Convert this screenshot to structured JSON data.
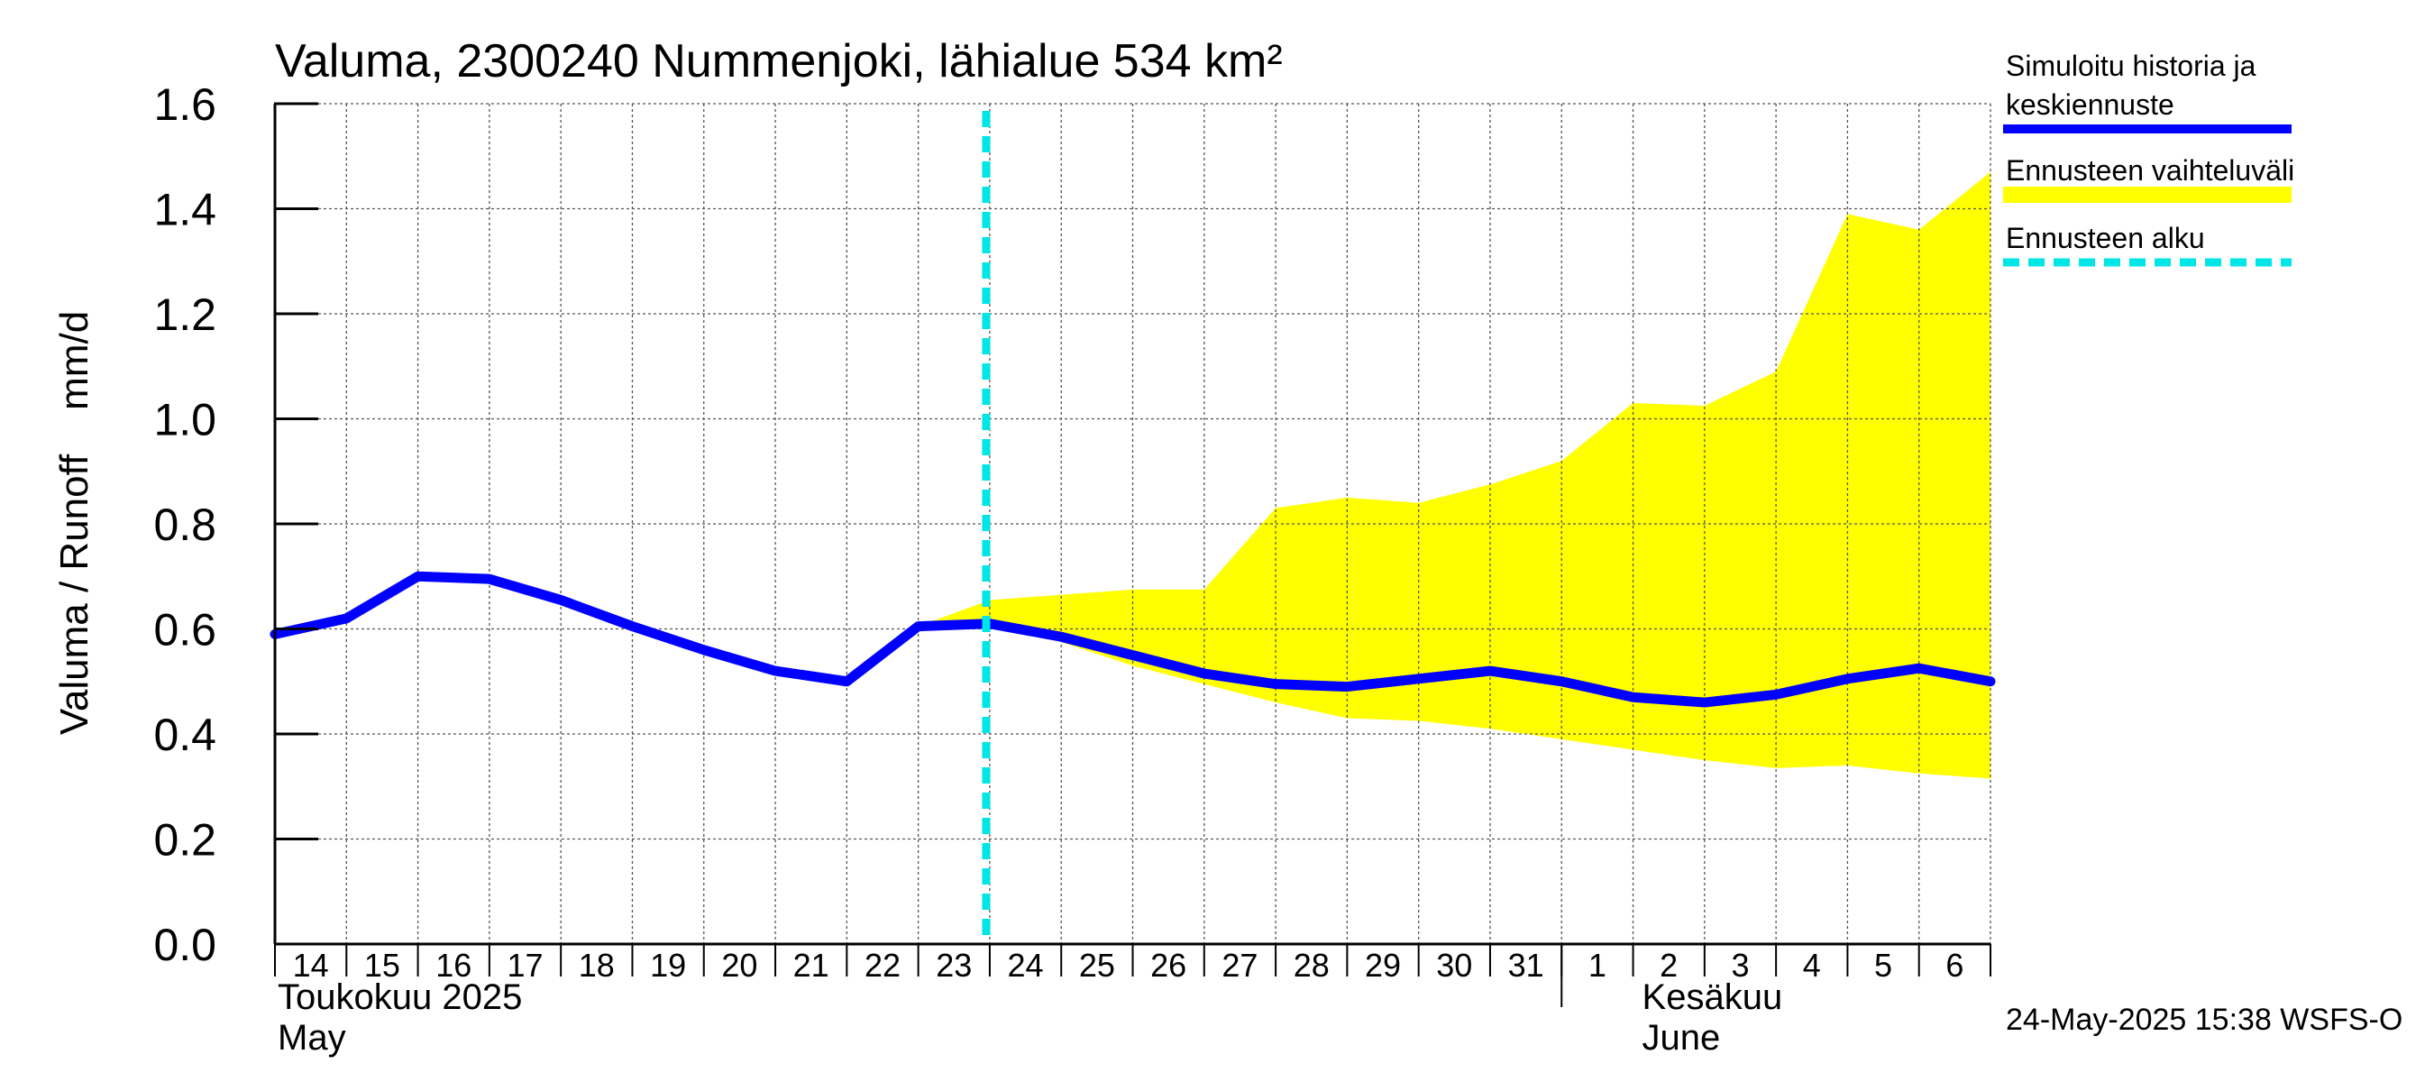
{
  "chart_data": {
    "type": "line",
    "title": "Valuma, 2300240 Nummenjoki, lähialue 534 km²",
    "ylabel": "Valuma / Runoff    mm/d",
    "ylim": [
      0,
      1.6
    ],
    "yticks": [
      "0.0",
      "0.2",
      "0.4",
      "0.6",
      "0.8",
      "1.0",
      "1.2",
      "1.4",
      "1.6"
    ],
    "ytick_values": [
      0,
      0.2,
      0.4,
      0.6,
      0.8,
      1.0,
      1.2,
      1.4,
      1.6
    ],
    "x_day_labels": [
      "14",
      "15",
      "16",
      "17",
      "18",
      "19",
      "20",
      "21",
      "22",
      "23",
      "24",
      "25",
      "26",
      "27",
      "28",
      "29",
      "30",
      "31",
      "1",
      "2",
      "3",
      "4",
      "5",
      "6"
    ],
    "month_labels": {
      "may_fi": "Toukokuu  2025",
      "may_en": "May",
      "june_fi": "Kesäkuu",
      "june_en": "June"
    },
    "forecast_start_day_index": 9.95,
    "series": [
      {
        "name": "Simuloitu historia ja keskiennuste",
        "color": "#0000ff",
        "x": [
          0,
          1,
          2,
          3,
          4,
          5,
          6,
          7,
          8,
          9,
          10,
          11,
          12,
          13,
          14,
          15,
          16,
          17,
          18,
          19,
          20,
          21,
          22,
          23,
          24
        ],
        "values": [
          0.59,
          0.62,
          0.7,
          0.695,
          0.655,
          0.605,
          0.56,
          0.52,
          0.5,
          0.605,
          0.61,
          0.585,
          0.55,
          0.515,
          0.495,
          0.49,
          0.505,
          0.52,
          0.5,
          0.47,
          0.46,
          0.475,
          0.505,
          0.525,
          0.5
        ]
      },
      {
        "name": "Ennusteen vaihteluväli",
        "color": "#ffff00",
        "x": [
          9,
          10,
          11,
          12,
          13,
          14,
          15,
          16,
          17,
          18,
          19,
          20,
          21,
          22,
          23,
          24
        ],
        "upper": [
          0.605,
          0.655,
          0.665,
          0.675,
          0.675,
          0.83,
          0.85,
          0.84,
          0.875,
          0.92,
          1.03,
          1.025,
          1.09,
          1.39,
          1.36,
          1.47
        ],
        "lower": [
          0.605,
          0.605,
          0.575,
          0.53,
          0.495,
          0.46,
          0.43,
          0.425,
          0.41,
          0.39,
          0.37,
          0.35,
          0.335,
          0.34,
          0.325,
          0.315
        ]
      }
    ],
    "legend": [
      {
        "label_line1": "Simuloitu historia ja",
        "label_line2": "keskiennuste",
        "color": "#0000ff",
        "style": "solid"
      },
      {
        "label_line1": "Ennusteen vaihteluväli",
        "label_line2": "",
        "color": "#ffff00",
        "style": "solid"
      },
      {
        "label_line1": "Ennusteen alku",
        "label_line2": "",
        "color": "#00e5e5",
        "style": "dashed"
      }
    ],
    "legend_position": "right",
    "grid": true,
    "footer": "24-May-2025 15:38 WSFS-O"
  }
}
